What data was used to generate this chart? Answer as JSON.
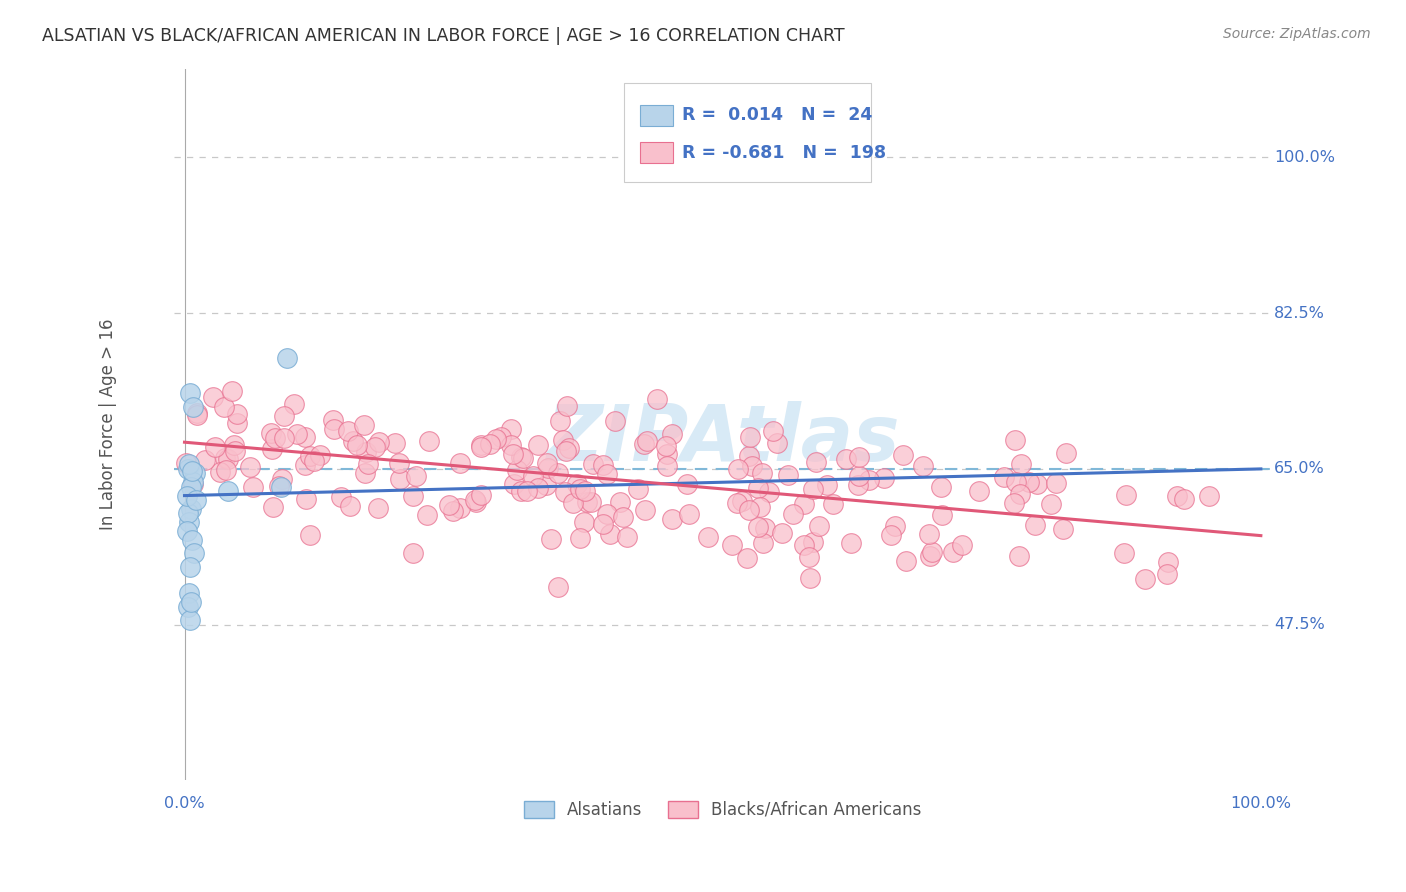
{
  "title": "ALSATIAN VS BLACK/AFRICAN AMERICAN IN LABOR FORCE | AGE > 16 CORRELATION CHART",
  "source": "Source: ZipAtlas.com",
  "ylabel": "In Labor Force | Age > 16",
  "legend_label_1": "Alsatians",
  "legend_label_2": "Blacks/African Americans",
  "r1": 0.014,
  "n1": 24,
  "r2": -0.681,
  "n2": 198,
  "color_blue_fill": "#b8d4ea",
  "color_blue_edge": "#7aadd4",
  "color_blue_line": "#4472c4",
  "color_pink_fill": "#f9c0cc",
  "color_pink_edge": "#e87090",
  "color_pink_line": "#e05878",
  "color_text_blue": "#4472c4",
  "color_grid": "#c8c8c8",
  "color_dashed": "#80b8d8",
  "watermark_color": "#d8eaf6",
  "y_min": 0.3,
  "y_max": 1.1,
  "x_min": 0.0,
  "x_max": 1.0,
  "ytick_vals": [
    1.0,
    0.825,
    0.65,
    0.475
  ],
  "ytick_labels": [
    "100.0%",
    "82.5%",
    "65.0%",
    "47.5%"
  ],
  "blue_line_x0": 0.0,
  "blue_line_x1": 1.0,
  "blue_line_y0": 0.62,
  "blue_line_y1": 0.65,
  "pink_line_x0": 0.0,
  "pink_line_x1": 1.0,
  "pink_line_y0": 0.68,
  "pink_line_y1": 0.575
}
